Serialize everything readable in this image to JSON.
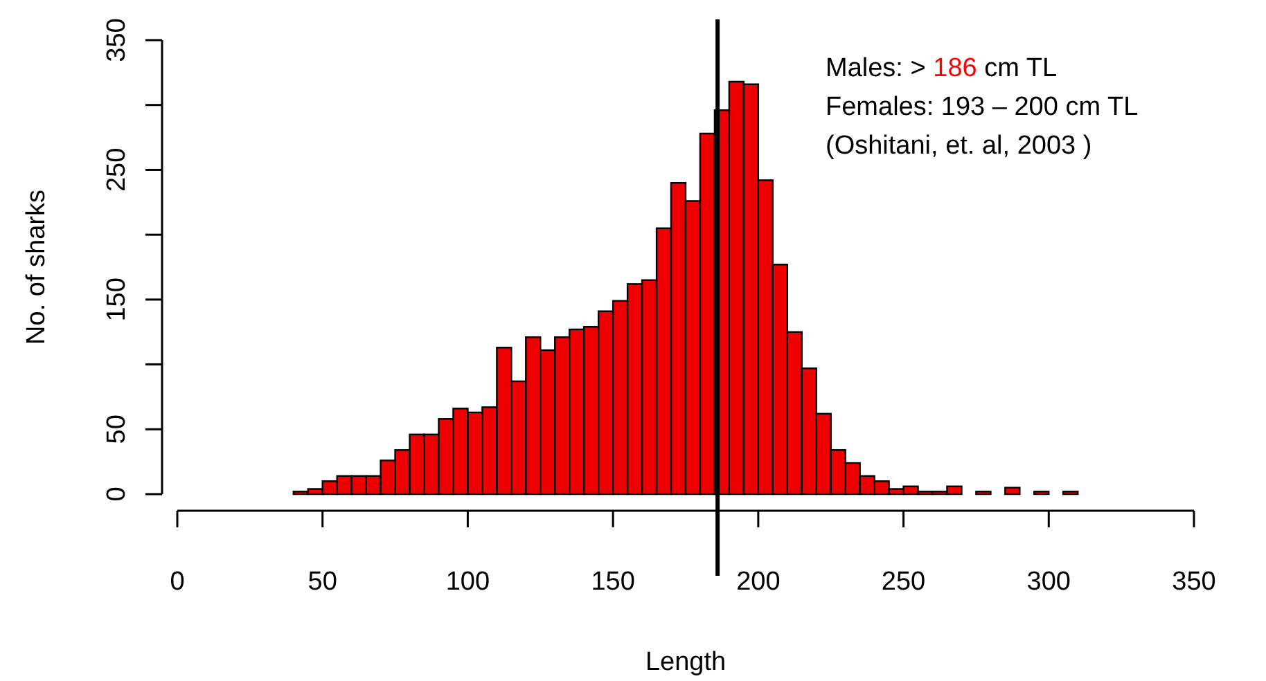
{
  "chart_data": {
    "type": "histogram",
    "xlabel": "Length",
    "ylabel": "No. of sharks",
    "bins": [
      10,
      15,
      20,
      25,
      30,
      35,
      40,
      45,
      50,
      55,
      60,
      65,
      70,
      75,
      80,
      85,
      90,
      95,
      100,
      105,
      110,
      115,
      120,
      125,
      130,
      135,
      140,
      145,
      150,
      155,
      160,
      165,
      170,
      175,
      180,
      185,
      190,
      195,
      200,
      205,
      210,
      215,
      220,
      225,
      230,
      235,
      240,
      245,
      250,
      255,
      260,
      265,
      270,
      275,
      280,
      285,
      290,
      295,
      300,
      305,
      310,
      315,
      320,
      325,
      330,
      335,
      340,
      345,
      350
    ],
    "values": [
      0,
      0,
      0,
      0,
      0,
      0,
      2,
      4,
      10,
      14,
      14,
      14,
      26,
      34,
      46,
      46,
      58,
      66,
      63,
      67,
      113,
      87,
      121,
      111,
      121,
      127,
      129,
      141,
      149,
      162,
      165,
      205,
      240,
      226,
      278,
      296,
      318,
      316,
      242,
      177,
      125,
      97,
      62,
      34,
      24,
      14,
      10,
      4,
      6,
      2,
      2,
      6,
      0,
      2,
      0,
      5,
      0,
      2,
      0,
      2,
      0,
      0,
      0,
      0,
      0,
      0,
      0,
      0
    ],
    "color": "#ee0000",
    "xlim": [
      0,
      350
    ],
    "xticks": [
      0,
      50,
      100,
      150,
      200,
      250,
      300,
      350
    ],
    "ylim": [
      0,
      350
    ],
    "yticks": [
      0,
      50,
      {
        "value": 100,
        "label": null
      },
      150,
      {
        "value": 200,
        "label": null
      },
      250,
      {
        "value": 300,
        "label": null
      },
      350
    ],
    "ref_lines": [
      {
        "axis": "x",
        "value": 186,
        "color": "#000000"
      }
    ],
    "annotations": [
      "Males: > 186 cm TL",
      "Females: 193 – 200 cm TL",
      "(Oshitani, et. al, 2003 )"
    ]
  }
}
